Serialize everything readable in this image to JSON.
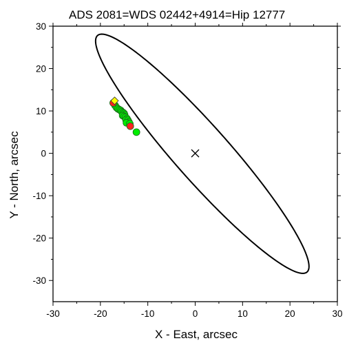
{
  "chart_data": {
    "type": "scatter",
    "title": "ADS 2081=WDS 02442+4914=Hip 12777",
    "xlabel": "X - East, arcsec",
    "ylabel": "Y - North, arcsec",
    "xlim": [
      -30,
      30
    ],
    "ylim": [
      -35,
      30
    ],
    "x_ticks": [
      -30,
      -20,
      -10,
      0,
      10,
      20,
      30
    ],
    "y_ticks": [
      -30,
      -20,
      -10,
      0,
      10,
      20,
      30
    ],
    "x_tick_labels": [
      "-30",
      "-20",
      "-10",
      "0",
      "10",
      "20",
      "30"
    ],
    "y_tick_labels": [
      "-30",
      "-20",
      "-10",
      "0",
      "10",
      "20",
      "30"
    ],
    "grid": false,
    "legend": "none",
    "orbit": {
      "center": [
        1.5,
        -0.1
      ],
      "semi_major": 35.6,
      "semi_minor": 6.0,
      "angle_deg": -51.8,
      "color": "#000000"
    },
    "primary_marker": {
      "x": 0,
      "y": 0,
      "symbol": "x"
    },
    "series": [
      {
        "marker": "circle",
        "color": "#00ee00",
        "points": [
          [
            -16.9,
            11.3
          ],
          [
            -16.6,
            10.8
          ],
          [
            -16.3,
            10.5
          ],
          [
            -16.0,
            10.3
          ],
          [
            -15.7,
            10.1
          ],
          [
            -15.5,
            9.8
          ],
          [
            -15.2,
            9.6
          ],
          [
            -15.0,
            9.4
          ],
          [
            -14.9,
            9.1
          ],
          [
            -15.3,
            8.9
          ],
          [
            -15.0,
            8.7
          ],
          [
            -14.7,
            8.5
          ],
          [
            -14.4,
            8.2
          ],
          [
            -14.6,
            7.9
          ],
          [
            -14.2,
            7.8
          ],
          [
            -14.0,
            7.4
          ],
          [
            -14.5,
            7.2
          ],
          [
            -13.8,
            7.0
          ],
          [
            -12.4,
            5.0
          ]
        ]
      },
      {
        "marker": "circle",
        "color": "#ff2222",
        "points": [
          [
            -17.3,
            11.9
          ],
          [
            -13.7,
            6.4
          ]
        ]
      },
      {
        "marker": "diamond",
        "color": "#ffff00",
        "points": [
          [
            -17.0,
            12.4
          ]
        ]
      }
    ]
  }
}
